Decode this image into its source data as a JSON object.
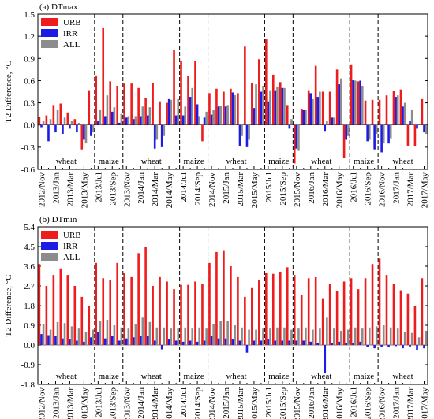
{
  "chart_data": [
    {
      "type": "bar",
      "title": "(a) DTmax",
      "ylabel": "T2 Difference, °C",
      "categories": [
        "2012/Nov",
        null,
        "2013/Jan",
        null,
        "2013/Mar",
        null,
        "2013/May",
        null,
        "2013/Jul",
        null,
        "2013/Sep",
        null,
        "2013/Nov",
        null,
        "2014/Jan",
        null,
        "2014/Mar",
        null,
        "2014/May",
        null,
        "2014/Jul",
        null,
        "2014/Sep",
        null,
        "2014/Nov",
        null,
        "2015/Jan",
        null,
        "2015/Mar",
        null,
        "2015/May",
        null,
        "2015/Jul",
        null,
        "2015/Sep",
        null,
        "2015/Nov",
        null,
        "2016/Jan",
        null,
        "2016/Mar",
        null,
        "2016/May",
        null,
        "2016/Jul",
        null,
        "2016/Sep",
        null,
        "2016/Nov",
        null,
        "2017/Jan",
        null,
        "2017/Mar",
        null,
        "2017/May"
      ],
      "series": [
        {
          "name": "URB",
          "color": "#ee1c1c",
          "values": [
            0.11,
            0.13,
            0.27,
            0.29,
            0.17,
            0.08,
            -0.33,
            0.47,
            0.67,
            1.32,
            0.59,
            0.53,
            0.56,
            0.56,
            0.5,
            0.36,
            0.57,
            0.32,
            0.3,
            1.02,
            0.87,
            0.66,
            0.86,
            -0.22,
            0.43,
            0.49,
            0.45,
            0.49,
            0.43,
            1.06,
            0.57,
            0.89,
            1.16,
            0.68,
            0.58,
            0.27,
            -0.52,
            0.22,
            0.47,
            0.8,
            0.45,
            0.45,
            0.75,
            -0.45,
            0.82,
            0.59,
            0.33,
            0.34,
            0.34,
            0.4,
            0.46,
            0.48,
            -0.28,
            -0.29,
            0.35
          ]
        },
        {
          "name": "IRR",
          "color": "#1c1ce6",
          "values": [
            -0.03,
            -0.22,
            -0.1,
            -0.12,
            -0.05,
            -0.1,
            -0.2,
            -0.15,
            0.05,
            0.12,
            0.18,
            0.03,
            0.1,
            0.08,
            0.12,
            0.13,
            -0.32,
            -0.3,
            0.35,
            0.13,
            0.13,
            0.38,
            0.28,
            0.1,
            0.14,
            0.25,
            0.25,
            0.44,
            -0.28,
            -0.3,
            0.23,
            0.45,
            0.32,
            0.47,
            0.5,
            -0.05,
            -0.32,
            0.2,
            0.43,
            0.38,
            -0.08,
            0.1,
            0.55,
            -0.2,
            0.61,
            0.6,
            -0.22,
            -0.33,
            -0.37,
            -0.25,
            0.38,
            0.25,
            0.05,
            -0.05,
            -0.1
          ]
        },
        {
          "name": "ALL",
          "color": "#8c8c8c",
          "values": [
            0.06,
            0.08,
            0.2,
            0.1,
            0.05,
            0.03,
            -0.25,
            -0.1,
            0.2,
            0.4,
            0.24,
            0.15,
            0.12,
            0.12,
            0.25,
            0.24,
            -0.2,
            -0.15,
            0.34,
            0.35,
            0.25,
            0.5,
            0.12,
            0.18,
            0.2,
            0.26,
            0.27,
            0.41,
            -0.15,
            -0.2,
            0.55,
            0.53,
            0.47,
            0.52,
            0.5,
            0.08,
            -0.35,
            0.2,
            0.35,
            0.45,
            0.05,
            0.1,
            0.63,
            -0.15,
            0.6,
            0.53,
            -0.2,
            -0.12,
            -0.25,
            -0.18,
            0.4,
            0.3,
            0.2,
            0,
            -0.12
          ]
        }
      ],
      "ylim": [
        -0.6,
        1.5
      ],
      "yticks": [
        {
          "value": -0.6,
          "label": "-0.6"
        },
        {
          "value": -0.3,
          "label": "-0.3"
        },
        {
          "value": 0,
          "label": "0.0"
        },
        {
          "value": 0.3,
          "label": "0.3"
        },
        {
          "value": 0.6,
          "label": "0.6"
        },
        {
          "value": 0.9,
          "label": "0.9"
        },
        {
          "value": 1.2,
          "label": "1.2"
        },
        {
          "value": 1.5,
          "label": "1.5"
        }
      ],
      "legend": "upper left",
      "grid": false,
      "annotations": [
        "wheat",
        "maize",
        "wheat",
        "maize",
        "wheat",
        "maize",
        "wheat",
        "maize",
        "wheat"
      ]
    },
    {
      "type": "bar",
      "title": "(b) DTmin",
      "ylabel": "T2 Difference, °C",
      "categories": [
        "2012/Nov",
        null,
        "2013/Jan",
        null,
        "2013/Mar",
        null,
        "2013/May",
        null,
        "2013/Jul",
        null,
        "2013/Sep",
        null,
        "2013/Nov",
        null,
        "2014/Jan",
        null,
        "2014/Mar",
        null,
        "2014/May",
        null,
        "2014/Jul",
        null,
        "2014/Sep",
        null,
        "2014/Nov",
        null,
        "2015/Jan",
        null,
        "2015/Mar",
        null,
        "2015/May",
        null,
        "2015/Jul",
        null,
        "2015/Sep",
        null,
        "2015/Nov",
        null,
        "2016/Jan",
        null,
        "2016/Mar",
        null,
        "2016/May",
        null,
        "2016/Jul",
        null,
        "2016/Sep",
        null,
        "2016/Nov",
        null,
        "2017/Jan",
        null,
        "2017/Mar",
        null,
        "2017/May"
      ],
      "series": [
        {
          "name": "URB",
          "color": "#ee1c1c",
          "values": [
            3.7,
            2.7,
            3.2,
            3.5,
            3.2,
            2.7,
            2.2,
            1.8,
            3.75,
            3.05,
            2.95,
            3.75,
            3.3,
            3.1,
            4.2,
            4.5,
            2.7,
            3.1,
            2.9,
            2.55,
            2.75,
            2.75,
            2.9,
            2.8,
            3.75,
            4.25,
            4.3,
            3.6,
            3.1,
            2.2,
            2.6,
            2.95,
            3.3,
            3.25,
            3.35,
            3.55,
            3.2,
            2.3,
            3.05,
            3.1,
            2.1,
            2.8,
            2.45,
            2.9,
            3.05,
            2.55,
            3.05,
            3.7,
            3.95,
            3.2,
            2.8,
            2.5,
            2.35,
            1.8,
            3.05
          ]
        },
        {
          "name": "IRR",
          "color": "#1c1ce6",
          "values": [
            0.5,
            0.45,
            0.4,
            0.3,
            0.25,
            0.2,
            0.15,
            0.35,
            0.6,
            0.3,
            0.4,
            0.2,
            0.3,
            0.35,
            0.4,
            0.4,
            0.2,
            -0.2,
            0.25,
            0.2,
            0.15,
            0.2,
            0.15,
            0.2,
            0.4,
            0.3,
            0.3,
            0.25,
            0.2,
            -0.35,
            0.2,
            0.2,
            0.25,
            0.2,
            0.2,
            0.2,
            0.2,
            0.2,
            0.15,
            0.1,
            -1.3,
            0.1,
            0.15,
            0.1,
            0.1,
            0.15,
            -0.1,
            -0.15,
            -0.1,
            -0.1,
            -0.05,
            -0.15,
            -0.1,
            -0.25,
            -0.15
          ]
        },
        {
          "name": "ALL",
          "color": "#8c8c8c",
          "values": [
            0.95,
            0.7,
            1.05,
            1.0,
            0.85,
            0.75,
            0.6,
            0.7,
            1.1,
            1.15,
            0.9,
            0.8,
            0.75,
            0.95,
            1.25,
            1.05,
            0.8,
            0.8,
            0.75,
            0.75,
            0.8,
            0.75,
            0.8,
            0.75,
            0.95,
            1.1,
            1.1,
            0.9,
            0.8,
            0.7,
            0.7,
            0.75,
            0.75,
            0.8,
            0.8,
            0.7,
            0.75,
            0.8,
            0.7,
            0.75,
            1.25,
            0.75,
            0.65,
            0.7,
            0.8,
            0.75,
            0.8,
            0.85,
            0.9,
            0.8,
            0.75,
            0.6,
            0.55,
            0.35,
            0.65
          ]
        }
      ],
      "ylim": [
        -1.8,
        5.4
      ],
      "yticks": [
        {
          "value": -1.8,
          "label": "-1.8"
        },
        {
          "value": -0.9,
          "label": "-0.9"
        },
        {
          "value": 0,
          "label": "0.0"
        },
        {
          "value": 0.9,
          "label": "0.9"
        },
        {
          "value": 1.8,
          "label": "1.8"
        },
        {
          "value": 2.7,
          "label": "2.7"
        },
        {
          "value": 3.6,
          "label": "3.6"
        },
        {
          "value": 4.5,
          "label": "4.5"
        },
        {
          "value": 5.4,
          "label": "5.4"
        }
      ],
      "legend": "upper left",
      "grid": false,
      "annotations": [
        "wheat",
        "maize",
        "wheat",
        "maize",
        "wheat",
        "maize",
        "wheat",
        "maize",
        "wheat"
      ]
    }
  ]
}
